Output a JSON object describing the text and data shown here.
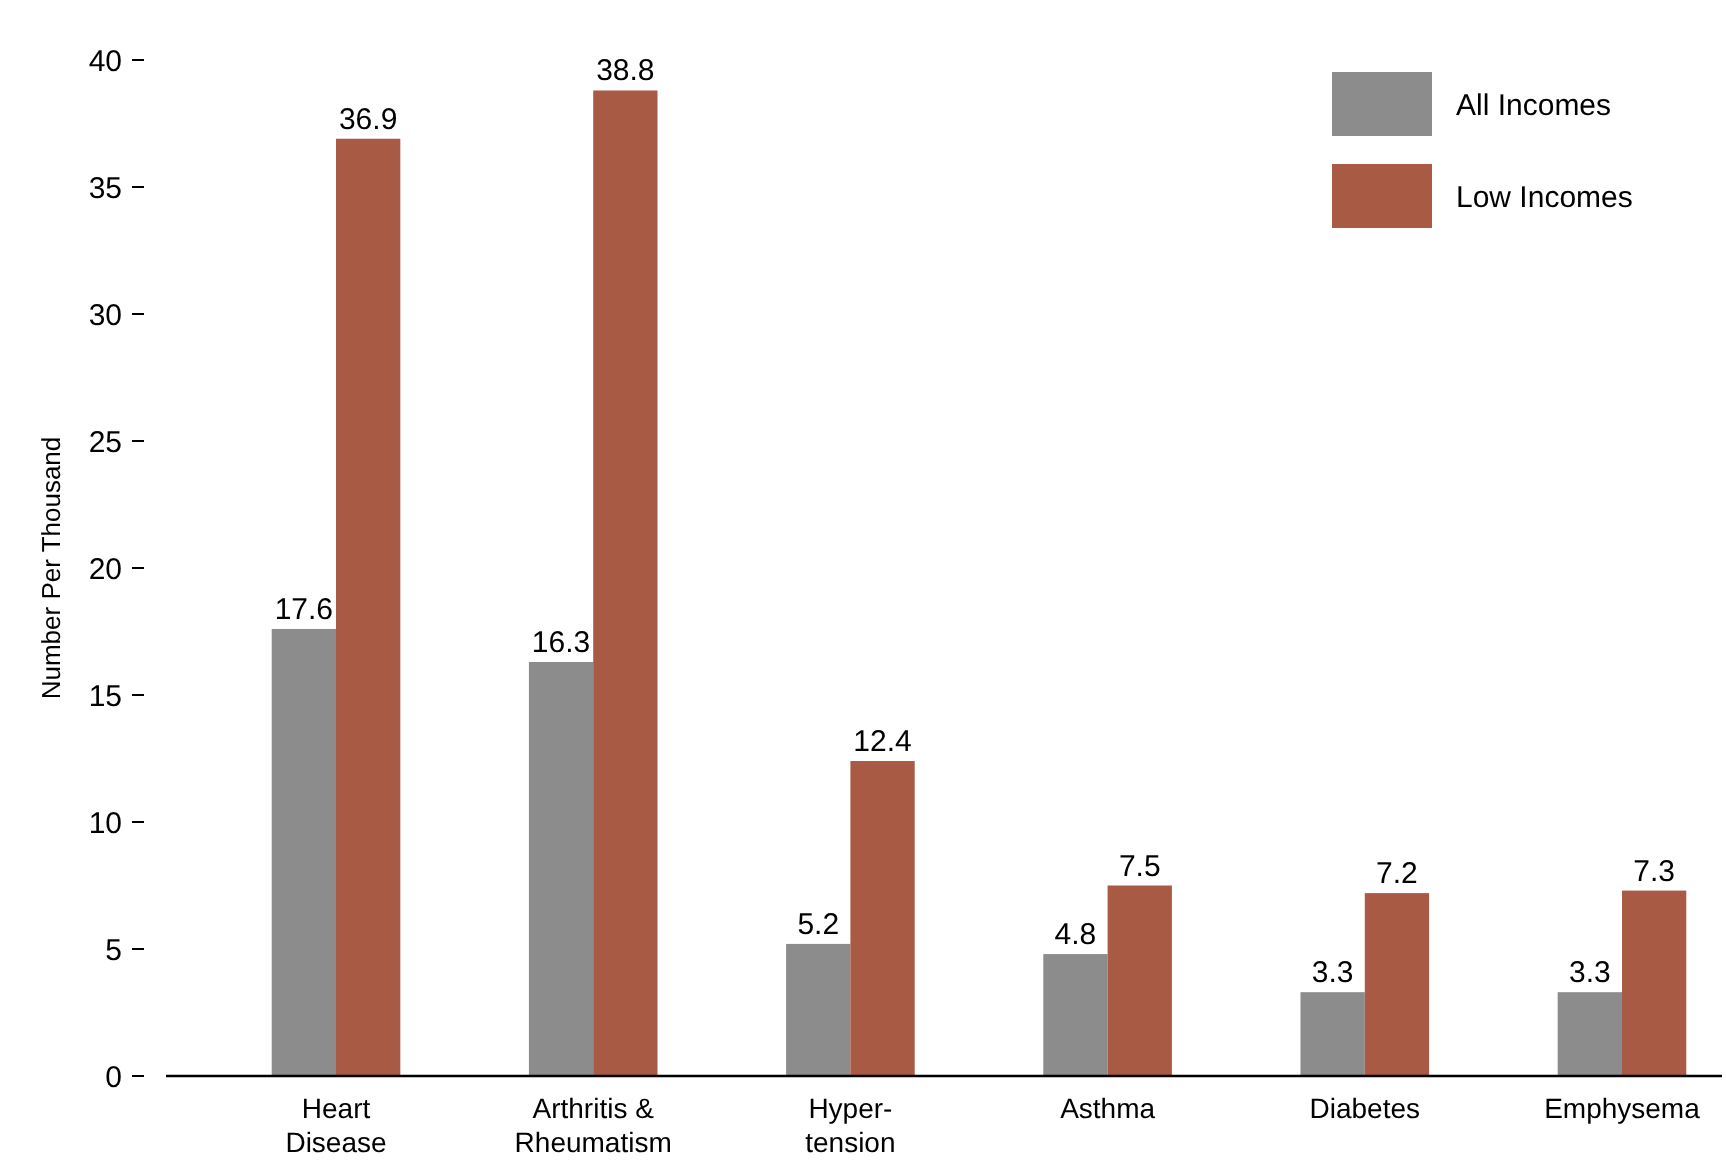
{
  "chart_data": {
    "type": "bar",
    "ylabel": "Number Per Thousand",
    "categories": [
      "Heart\nDisease",
      "Arthritis &\nRheumatism",
      "Hyper-\ntension",
      "Asthma",
      "Diabetes",
      "Emphysema"
    ],
    "series": [
      {
        "name": "All Incomes",
        "color": "#8c8c8c",
        "values": [
          17.6,
          16.3,
          5.2,
          4.8,
          3.3,
          3.3
        ]
      },
      {
        "name": "Low Incomes",
        "color": "#a85a44",
        "values": [
          36.9,
          38.8,
          12.4,
          7.5,
          7.2,
          7.3
        ]
      }
    ],
    "ylim": [
      0,
      40
    ],
    "yticks": [
      0,
      5,
      10,
      15,
      20,
      25,
      30,
      35,
      40
    ],
    "data_labels": true,
    "legend": "top right",
    "grid": false
  }
}
